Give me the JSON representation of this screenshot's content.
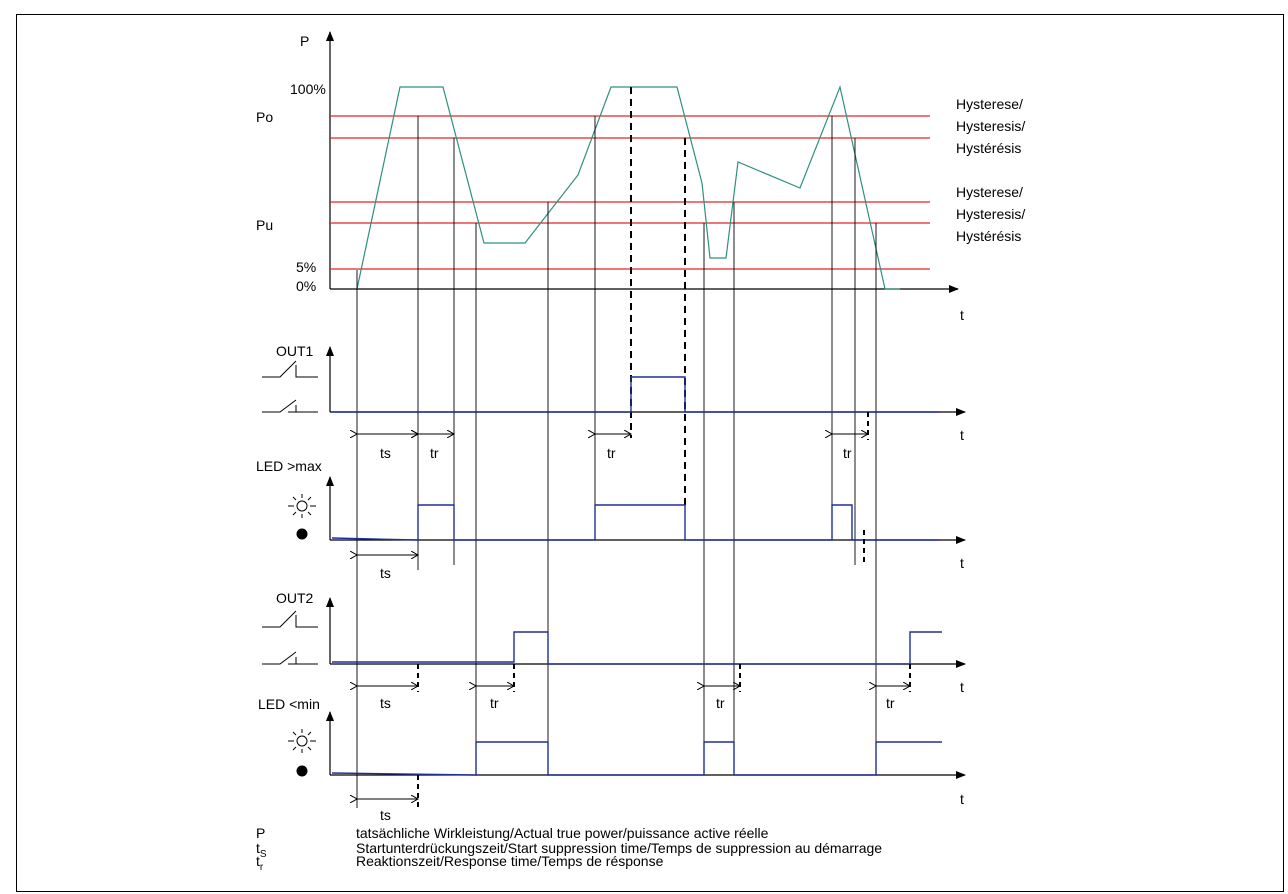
{
  "axes": {
    "p": "P",
    "t": "t",
    "p100": "100%",
    "po": "Po",
    "pu": "Pu",
    "p5": "5%",
    "p0": "0%"
  },
  "hysteresis": [
    "Hysterese/",
    "Hysteresis/",
    "Hystérésis"
  ],
  "signals": {
    "out1": "OUT1",
    "led_max": "LED >max",
    "out2": "OUT2",
    "led_min": "LED <min"
  },
  "timing": {
    "ts": "ts",
    "tr": "tr"
  },
  "legend": [
    {
      "symbol": "P",
      "sub": "",
      "text": "tatsächliche Wirkleistung/Actual true power/puissance active réelle"
    },
    {
      "symbol": "t",
      "sub": "S",
      "text": "Startunterdrückungszeit/Start suppression time/Temps de suppression au démarrage"
    },
    {
      "symbol": "t",
      "sub": "r",
      "text": "Reaktionszeit/Response time/Temps de résponse"
    }
  ],
  "colors": {
    "threshold": "#e0262a",
    "power_curve": "#2f8f7f",
    "signal": "#1f2f9a",
    "axis": "#000000"
  }
}
